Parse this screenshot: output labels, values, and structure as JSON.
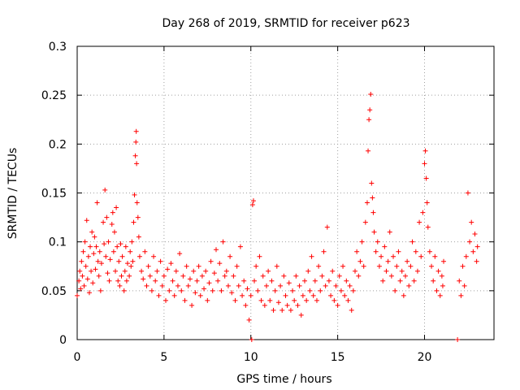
{
  "chart_data": {
    "type": "scatter",
    "title": "Day 268 of 2019, SRMTID for receiver p623",
    "xlabel": "GPS time / hours",
    "ylabel": "SRMTID / TECUs",
    "xlim": [
      0,
      24
    ],
    "ylim": [
      0,
      0.3
    ],
    "x_ticks": [
      0,
      5,
      10,
      15,
      20
    ],
    "x_tick_labels": [
      "0",
      "5",
      "10",
      "15",
      "20"
    ],
    "y_ticks": [
      0,
      0.05,
      0.1,
      0.15,
      0.2,
      0.25,
      0.3
    ],
    "y_tick_labels": [
      "0",
      "0.05",
      "0.1",
      "0.15",
      "0.2",
      "0.25",
      "0.3"
    ],
    "grid": true,
    "marker": "plus",
    "series": [
      {
        "name": "SRMTID",
        "color": "#ff0000",
        "points": [
          [
            0.0,
            0.045
          ],
          [
            0.1,
            0.06
          ],
          [
            0.15,
            0.07
          ],
          [
            0.2,
            0.052
          ],
          [
            0.25,
            0.08
          ],
          [
            0.3,
            0.065
          ],
          [
            0.35,
            0.09
          ],
          [
            0.4,
            0.055
          ],
          [
            0.45,
            0.1
          ],
          [
            0.5,
            0.075
          ],
          [
            0.55,
            0.122
          ],
          [
            0.6,
            0.062
          ],
          [
            0.65,
            0.085
          ],
          [
            0.7,
            0.048
          ],
          [
            0.75,
            0.095
          ],
          [
            0.8,
            0.07
          ],
          [
            0.85,
            0.11
          ],
          [
            0.9,
            0.058
          ],
          [
            0.95,
            0.088
          ],
          [
            1.0,
            0.105
          ],
          [
            1.05,
            0.072
          ],
          [
            1.1,
            0.095
          ],
          [
            1.15,
            0.14
          ],
          [
            1.2,
            0.08
          ],
          [
            1.25,
            0.065
          ],
          [
            1.3,
            0.09
          ],
          [
            1.35,
            0.05
          ],
          [
            1.4,
            0.078
          ],
          [
            1.5,
            0.12
          ],
          [
            1.55,
            0.098
          ],
          [
            1.6,
            0.153
          ],
          [
            1.65,
            0.085
          ],
          [
            1.7,
            0.125
          ],
          [
            1.75,
            0.068
          ],
          [
            1.8,
            0.1
          ],
          [
            1.85,
            0.06
          ],
          [
            1.9,
            0.082
          ],
          [
            2.0,
            0.118
          ],
          [
            2.05,
            0.13
          ],
          [
            2.1,
            0.09
          ],
          [
            2.15,
            0.11
          ],
          [
            2.2,
            0.07
          ],
          [
            2.25,
            0.135
          ],
          [
            2.3,
            0.095
          ],
          [
            2.35,
            0.06
          ],
          [
            2.4,
            0.08
          ],
          [
            2.45,
            0.055
          ],
          [
            2.5,
            0.098
          ],
          [
            2.55,
            0.065
          ],
          [
            2.6,
            0.085
          ],
          [
            2.7,
            0.05
          ],
          [
            2.75,
            0.07
          ],
          [
            2.8,
            0.095
          ],
          [
            2.85,
            0.06
          ],
          [
            2.9,
            0.078
          ],
          [
            3.0,
            0.065
          ],
          [
            3.05,
            0.09
          ],
          [
            3.1,
            0.075
          ],
          [
            3.15,
            0.1
          ],
          [
            3.2,
            0.08
          ],
          [
            3.25,
            0.12
          ],
          [
            3.3,
            0.148
          ],
          [
            3.35,
            0.188
          ],
          [
            3.38,
            0.202
          ],
          [
            3.4,
            0.213
          ],
          [
            3.42,
            0.18
          ],
          [
            3.45,
            0.14
          ],
          [
            3.5,
            0.125
          ],
          [
            3.55,
            0.105
          ],
          [
            3.6,
            0.085
          ],
          [
            3.7,
            0.07
          ],
          [
            3.8,
            0.062
          ],
          [
            3.9,
            0.09
          ],
          [
            4.0,
            0.055
          ],
          [
            4.1,
            0.075
          ],
          [
            4.2,
            0.065
          ],
          [
            4.3,
            0.05
          ],
          [
            4.4,
            0.085
          ],
          [
            4.5,
            0.06
          ],
          [
            4.6,
            0.07
          ],
          [
            4.7,
            0.045
          ],
          [
            4.8,
            0.08
          ],
          [
            4.9,
            0.055
          ],
          [
            5.0,
            0.065
          ],
          [
            5.1,
            0.04
          ],
          [
            5.2,
            0.072
          ],
          [
            5.3,
            0.05
          ],
          [
            5.4,
            0.078
          ],
          [
            5.5,
            0.06
          ],
          [
            5.6,
            0.045
          ],
          [
            5.7,
            0.07
          ],
          [
            5.8,
            0.055
          ],
          [
            5.9,
            0.088
          ],
          [
            6.0,
            0.05
          ],
          [
            6.1,
            0.065
          ],
          [
            6.2,
            0.04
          ],
          [
            6.3,
            0.075
          ],
          [
            6.4,
            0.055
          ],
          [
            6.5,
            0.062
          ],
          [
            6.6,
            0.035
          ],
          [
            6.7,
            0.07
          ],
          [
            6.8,
            0.048
          ],
          [
            6.9,
            0.06
          ],
          [
            7.0,
            0.075
          ],
          [
            7.1,
            0.045
          ],
          [
            7.2,
            0.065
          ],
          [
            7.3,
            0.052
          ],
          [
            7.4,
            0.07
          ],
          [
            7.5,
            0.04
          ],
          [
            7.6,
            0.058
          ],
          [
            7.7,
            0.08
          ],
          [
            7.8,
            0.05
          ],
          [
            7.9,
            0.068
          ],
          [
            8.0,
            0.092
          ],
          [
            8.1,
            0.06
          ],
          [
            8.2,
            0.078
          ],
          [
            8.3,
            0.05
          ],
          [
            8.4,
            0.1
          ],
          [
            8.5,
            0.065
          ],
          [
            8.6,
            0.07
          ],
          [
            8.7,
            0.055
          ],
          [
            8.8,
            0.085
          ],
          [
            8.9,
            0.048
          ],
          [
            9.0,
            0.065
          ],
          [
            9.1,
            0.04
          ],
          [
            9.2,
            0.075
          ],
          [
            9.3,
            0.055
          ],
          [
            9.4,
            0.095
          ],
          [
            9.5,
            0.045
          ],
          [
            9.6,
            0.06
          ],
          [
            9.7,
            0.035
          ],
          [
            9.8,
            0.052
          ],
          [
            9.9,
            0.02
          ],
          [
            10.0,
            0.045
          ],
          [
            10.05,
            0.0
          ],
          [
            10.1,
            0.138
          ],
          [
            10.15,
            0.142
          ],
          [
            10.2,
            0.06
          ],
          [
            10.3,
            0.075
          ],
          [
            10.4,
            0.05
          ],
          [
            10.5,
            0.085
          ],
          [
            10.6,
            0.04
          ],
          [
            10.7,
            0.065
          ],
          [
            10.8,
            0.035
          ],
          [
            10.9,
            0.055
          ],
          [
            11.0,
            0.07
          ],
          [
            11.1,
            0.04
          ],
          [
            11.2,
            0.06
          ],
          [
            11.3,
            0.03
          ],
          [
            11.4,
            0.05
          ],
          [
            11.5,
            0.075
          ],
          [
            11.6,
            0.038
          ],
          [
            11.7,
            0.055
          ],
          [
            11.8,
            0.03
          ],
          [
            11.9,
            0.065
          ],
          [
            12.0,
            0.045
          ],
          [
            12.1,
            0.035
          ],
          [
            12.2,
            0.058
          ],
          [
            12.3,
            0.03
          ],
          [
            12.4,
            0.05
          ],
          [
            12.5,
            0.04
          ],
          [
            12.6,
            0.065
          ],
          [
            12.7,
            0.035
          ],
          [
            12.8,
            0.055
          ],
          [
            12.9,
            0.025
          ],
          [
            13.0,
            0.045
          ],
          [
            13.1,
            0.06
          ],
          [
            13.2,
            0.04
          ],
          [
            13.3,
            0.07
          ],
          [
            13.4,
            0.05
          ],
          [
            13.5,
            0.085
          ],
          [
            13.6,
            0.045
          ],
          [
            13.7,
            0.06
          ],
          [
            13.8,
            0.04
          ],
          [
            13.9,
            0.075
          ],
          [
            14.0,
            0.05
          ],
          [
            14.1,
            0.065
          ],
          [
            14.2,
            0.09
          ],
          [
            14.3,
            0.055
          ],
          [
            14.4,
            0.115
          ],
          [
            14.5,
            0.06
          ],
          [
            14.6,
            0.045
          ],
          [
            14.7,
            0.07
          ],
          [
            14.8,
            0.04
          ],
          [
            14.9,
            0.055
          ],
          [
            15.0,
            0.035
          ],
          [
            15.1,
            0.065
          ],
          [
            15.2,
            0.05
          ],
          [
            15.3,
            0.075
          ],
          [
            15.4,
            0.045
          ],
          [
            15.5,
            0.06
          ],
          [
            15.6,
            0.04
          ],
          [
            15.7,
            0.055
          ],
          [
            15.8,
            0.03
          ],
          [
            15.9,
            0.05
          ],
          [
            16.0,
            0.07
          ],
          [
            16.1,
            0.09
          ],
          [
            16.2,
            0.065
          ],
          [
            16.3,
            0.08
          ],
          [
            16.4,
            0.1
          ],
          [
            16.5,
            0.075
          ],
          [
            16.6,
            0.12
          ],
          [
            16.7,
            0.14
          ],
          [
            16.75,
            0.193
          ],
          [
            16.8,
            0.225
          ],
          [
            16.85,
            0.235
          ],
          [
            16.9,
            0.251
          ],
          [
            16.95,
            0.16
          ],
          [
            17.0,
            0.145
          ],
          [
            17.05,
            0.13
          ],
          [
            17.1,
            0.11
          ],
          [
            17.2,
            0.09
          ],
          [
            17.3,
            0.1
          ],
          [
            17.4,
            0.075
          ],
          [
            17.5,
            0.085
          ],
          [
            17.6,
            0.06
          ],
          [
            17.7,
            0.095
          ],
          [
            17.8,
            0.07
          ],
          [
            17.9,
            0.08
          ],
          [
            18.0,
            0.11
          ],
          [
            18.1,
            0.065
          ],
          [
            18.2,
            0.085
          ],
          [
            18.3,
            0.05
          ],
          [
            18.4,
            0.075
          ],
          [
            18.5,
            0.09
          ],
          [
            18.6,
            0.06
          ],
          [
            18.7,
            0.07
          ],
          [
            18.8,
            0.045
          ],
          [
            18.9,
            0.065
          ],
          [
            19.0,
            0.08
          ],
          [
            19.1,
            0.055
          ],
          [
            19.2,
            0.075
          ],
          [
            19.3,
            0.1
          ],
          [
            19.4,
            0.06
          ],
          [
            19.5,
            0.09
          ],
          [
            19.6,
            0.07
          ],
          [
            19.7,
            0.12
          ],
          [
            19.8,
            0.085
          ],
          [
            19.9,
            0.13
          ],
          [
            20.0,
            0.18
          ],
          [
            20.05,
            0.193
          ],
          [
            20.1,
            0.165
          ],
          [
            20.15,
            0.14
          ],
          [
            20.2,
            0.115
          ],
          [
            20.3,
            0.09
          ],
          [
            20.4,
            0.075
          ],
          [
            20.5,
            0.06
          ],
          [
            20.6,
            0.085
          ],
          [
            20.7,
            0.05
          ],
          [
            20.8,
            0.07
          ],
          [
            20.9,
            0.045
          ],
          [
            21.0,
            0.065
          ],
          [
            21.05,
            0.055
          ],
          [
            21.1,
            0.08
          ],
          [
            21.9,
            0.0
          ],
          [
            22.0,
            0.06
          ],
          [
            22.1,
            0.045
          ],
          [
            22.2,
            0.075
          ],
          [
            22.3,
            0.055
          ],
          [
            22.4,
            0.085
          ],
          [
            22.5,
            0.15
          ],
          [
            22.6,
            0.1
          ],
          [
            22.7,
            0.12
          ],
          [
            22.8,
            0.09
          ],
          [
            22.9,
            0.108
          ],
          [
            23.0,
            0.08
          ],
          [
            23.05,
            0.095
          ]
        ]
      }
    ]
  }
}
